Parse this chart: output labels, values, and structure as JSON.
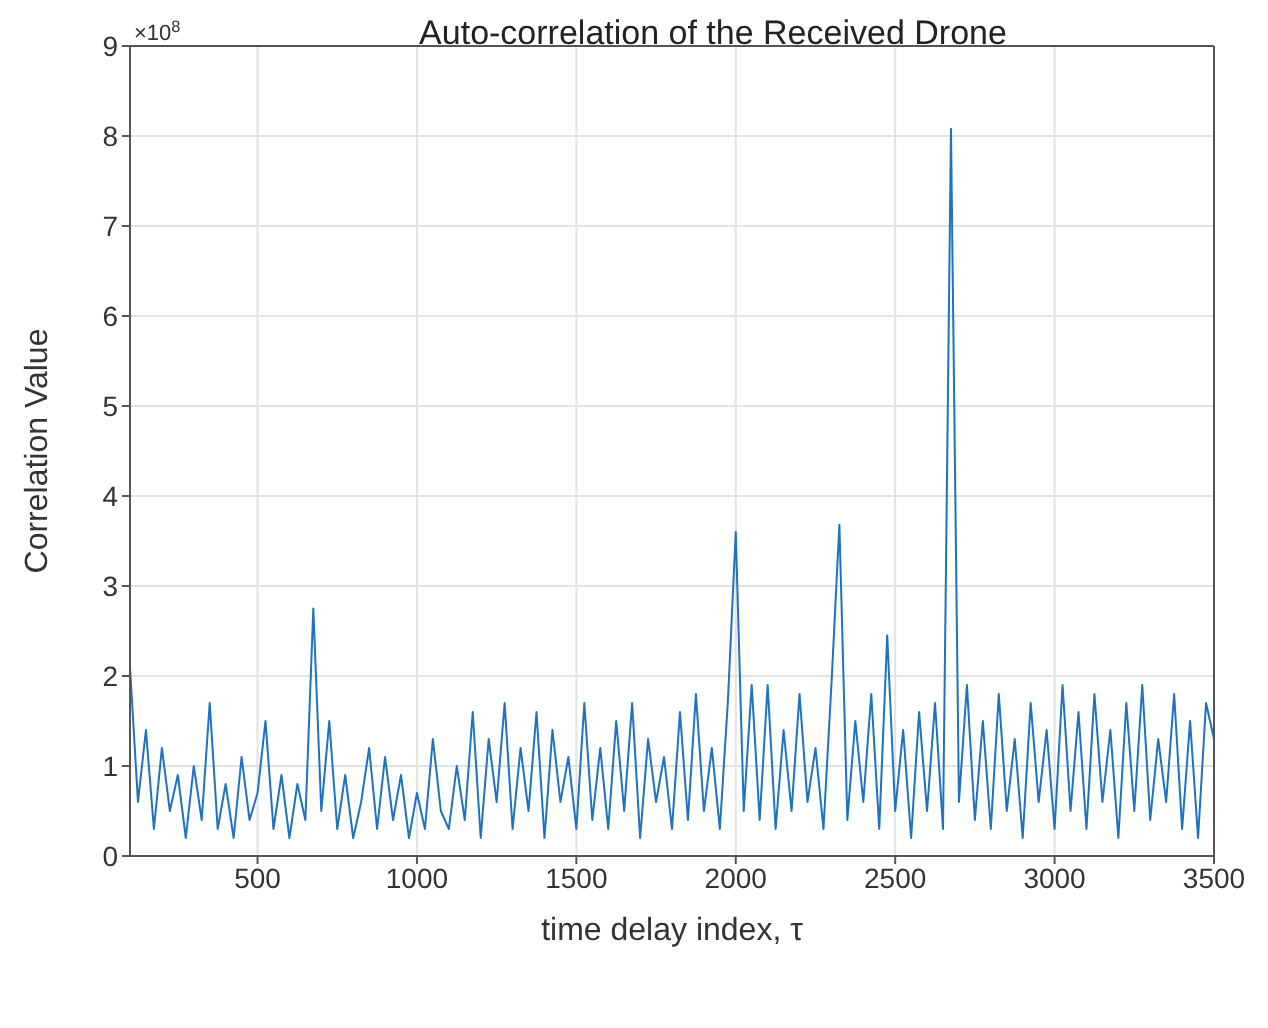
{
  "chart_data": {
    "type": "line",
    "title": "Auto-correlation of the Received Drone",
    "xlabel": "time delay index, τ",
    "ylabel": "Correlation Value",
    "annotations": [
      "×10$^{8}$"
    ],
    "x": [
      100,
      125,
      150,
      175,
      200,
      225,
      250,
      275,
      300,
      325,
      350,
      375,
      400,
      425,
      450,
      475,
      500,
      525,
      550,
      575,
      600,
      625,
      650,
      675,
      700,
      725,
      750,
      775,
      800,
      825,
      850,
      875,
      900,
      925,
      950,
      975,
      1000,
      1025,
      1050,
      1075,
      1100,
      1125,
      1150,
      1175,
      1200,
      1225,
      1250,
      1275,
      1300,
      1325,
      1350,
      1375,
      1400,
      1425,
      1450,
      1475,
      1500,
      1525,
      1550,
      1575,
      1600,
      1625,
      1650,
      1675,
      1700,
      1725,
      1750,
      1775,
      1800,
      1825,
      1850,
      1875,
      1900,
      1925,
      1950,
      1975,
      2000,
      2025,
      2050,
      2075,
      2100,
      2125,
      2150,
      2175,
      2200,
      2225,
      2250,
      2275,
      2300,
      2325,
      2350,
      2375,
      2400,
      2425,
      2450,
      2475,
      2500,
      2525,
      2550,
      2575,
      2600,
      2625,
      2650,
      2675,
      2700,
      2725,
      2750,
      2775,
      2800,
      2825,
      2850,
      2875,
      2900,
      2925,
      2950,
      2975,
      3000,
      3025,
      3050,
      3075,
      3100,
      3125,
      3150,
      3175,
      3200,
      3225,
      3250,
      3275,
      3300,
      3325,
      3350,
      3375,
      3400,
      3425,
      3450,
      3475,
      3500
    ],
    "series": [
      {
        "color": "#1f72bd",
        "values": [
          2.1,
          0.6,
          1.4,
          0.3,
          1.2,
          0.5,
          0.9,
          0.2,
          1.0,
          0.4,
          1.7,
          0.3,
          0.8,
          0.2,
          1.1,
          0.4,
          0.7,
          1.5,
          0.3,
          0.9,
          0.2,
          0.8,
          0.4,
          2.75,
          0.5,
          1.5,
          0.3,
          0.9,
          0.2,
          0.6,
          1.2,
          0.3,
          1.1,
          0.4,
          0.9,
          0.2,
          0.7,
          0.3,
          1.3,
          0.5,
          0.3,
          1.0,
          0.4,
          1.6,
          0.2,
          1.3,
          0.6,
          1.7,
          0.3,
          1.2,
          0.5,
          1.6,
          0.2,
          1.4,
          0.6,
          1.1,
          0.3,
          1.7,
          0.4,
          1.2,
          0.3,
          1.5,
          0.5,
          1.7,
          0.2,
          1.3,
          0.6,
          1.1,
          0.3,
          1.6,
          0.4,
          1.8,
          0.5,
          1.2,
          0.3,
          1.7,
          3.6,
          0.5,
          1.9,
          0.4,
          1.9,
          0.3,
          1.4,
          0.5,
          1.8,
          0.6,
          1.2,
          0.3,
          1.9,
          3.68,
          0.4,
          1.5,
          0.6,
          1.8,
          0.3,
          2.45,
          0.5,
          1.4,
          0.2,
          1.6,
          0.5,
          1.7,
          0.3,
          8.08,
          0.6,
          1.9,
          0.4,
          1.5,
          0.3,
          1.8,
          0.5,
          1.3,
          0.2,
          1.7,
          0.6,
          1.4,
          0.3,
          1.9,
          0.5,
          1.6,
          0.3,
          1.8,
          0.6,
          1.4,
          0.2,
          1.7,
          0.5,
          1.9,
          0.4,
          1.3,
          0.6,
          1.8,
          0.3,
          1.5,
          0.2,
          1.7,
          1.3
        ]
      }
    ],
    "xlim": [
      100,
      3500
    ],
    "xticks": [
      500,
      1000,
      1500,
      2000,
      2500,
      3000,
      3500
    ],
    "ylim": [
      0,
      9
    ],
    "yticks": [
      0,
      1,
      2,
      3,
      4,
      5,
      6,
      7,
      8,
      9
    ],
    "grid": true,
    "legend": false,
    "marker": "none",
    "line_style": "solid"
  }
}
